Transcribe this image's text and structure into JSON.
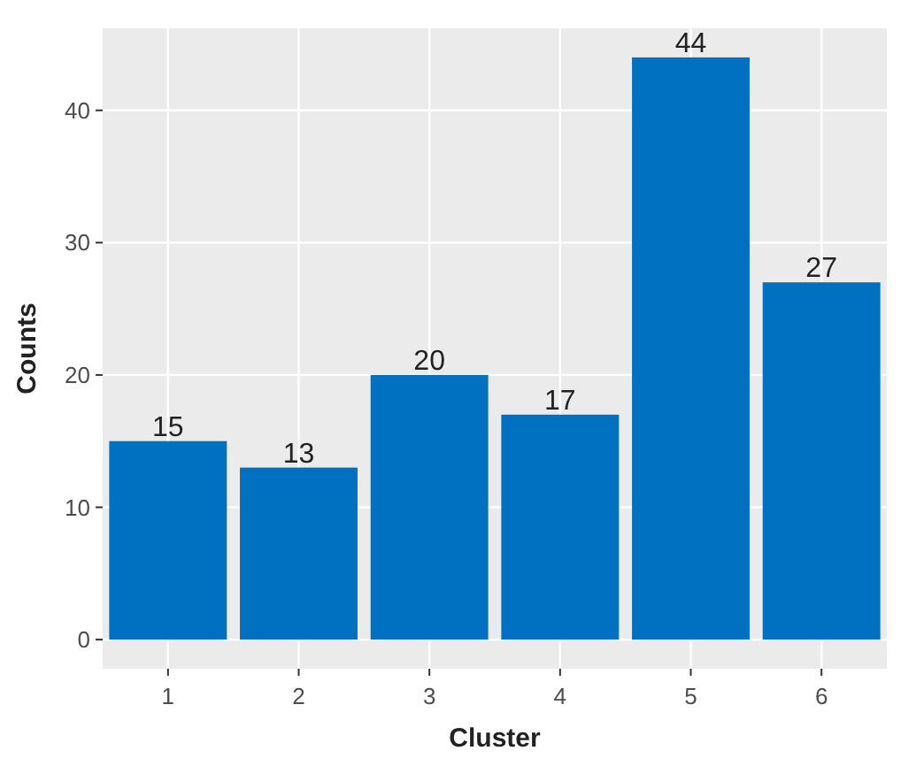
{
  "chart_data": {
    "type": "bar",
    "xlabel": "Cluster",
    "ylabel": "Counts",
    "categories": [
      "1",
      "2",
      "3",
      "4",
      "5",
      "6"
    ],
    "values": [
      15,
      13,
      20,
      17,
      44,
      27
    ],
    "color": "#0070c0",
    "ylim": [
      -2.2,
      46.2
    ],
    "yticks": [
      0,
      10,
      20,
      30,
      40
    ],
    "grid": true,
    "data_labels": true
  }
}
